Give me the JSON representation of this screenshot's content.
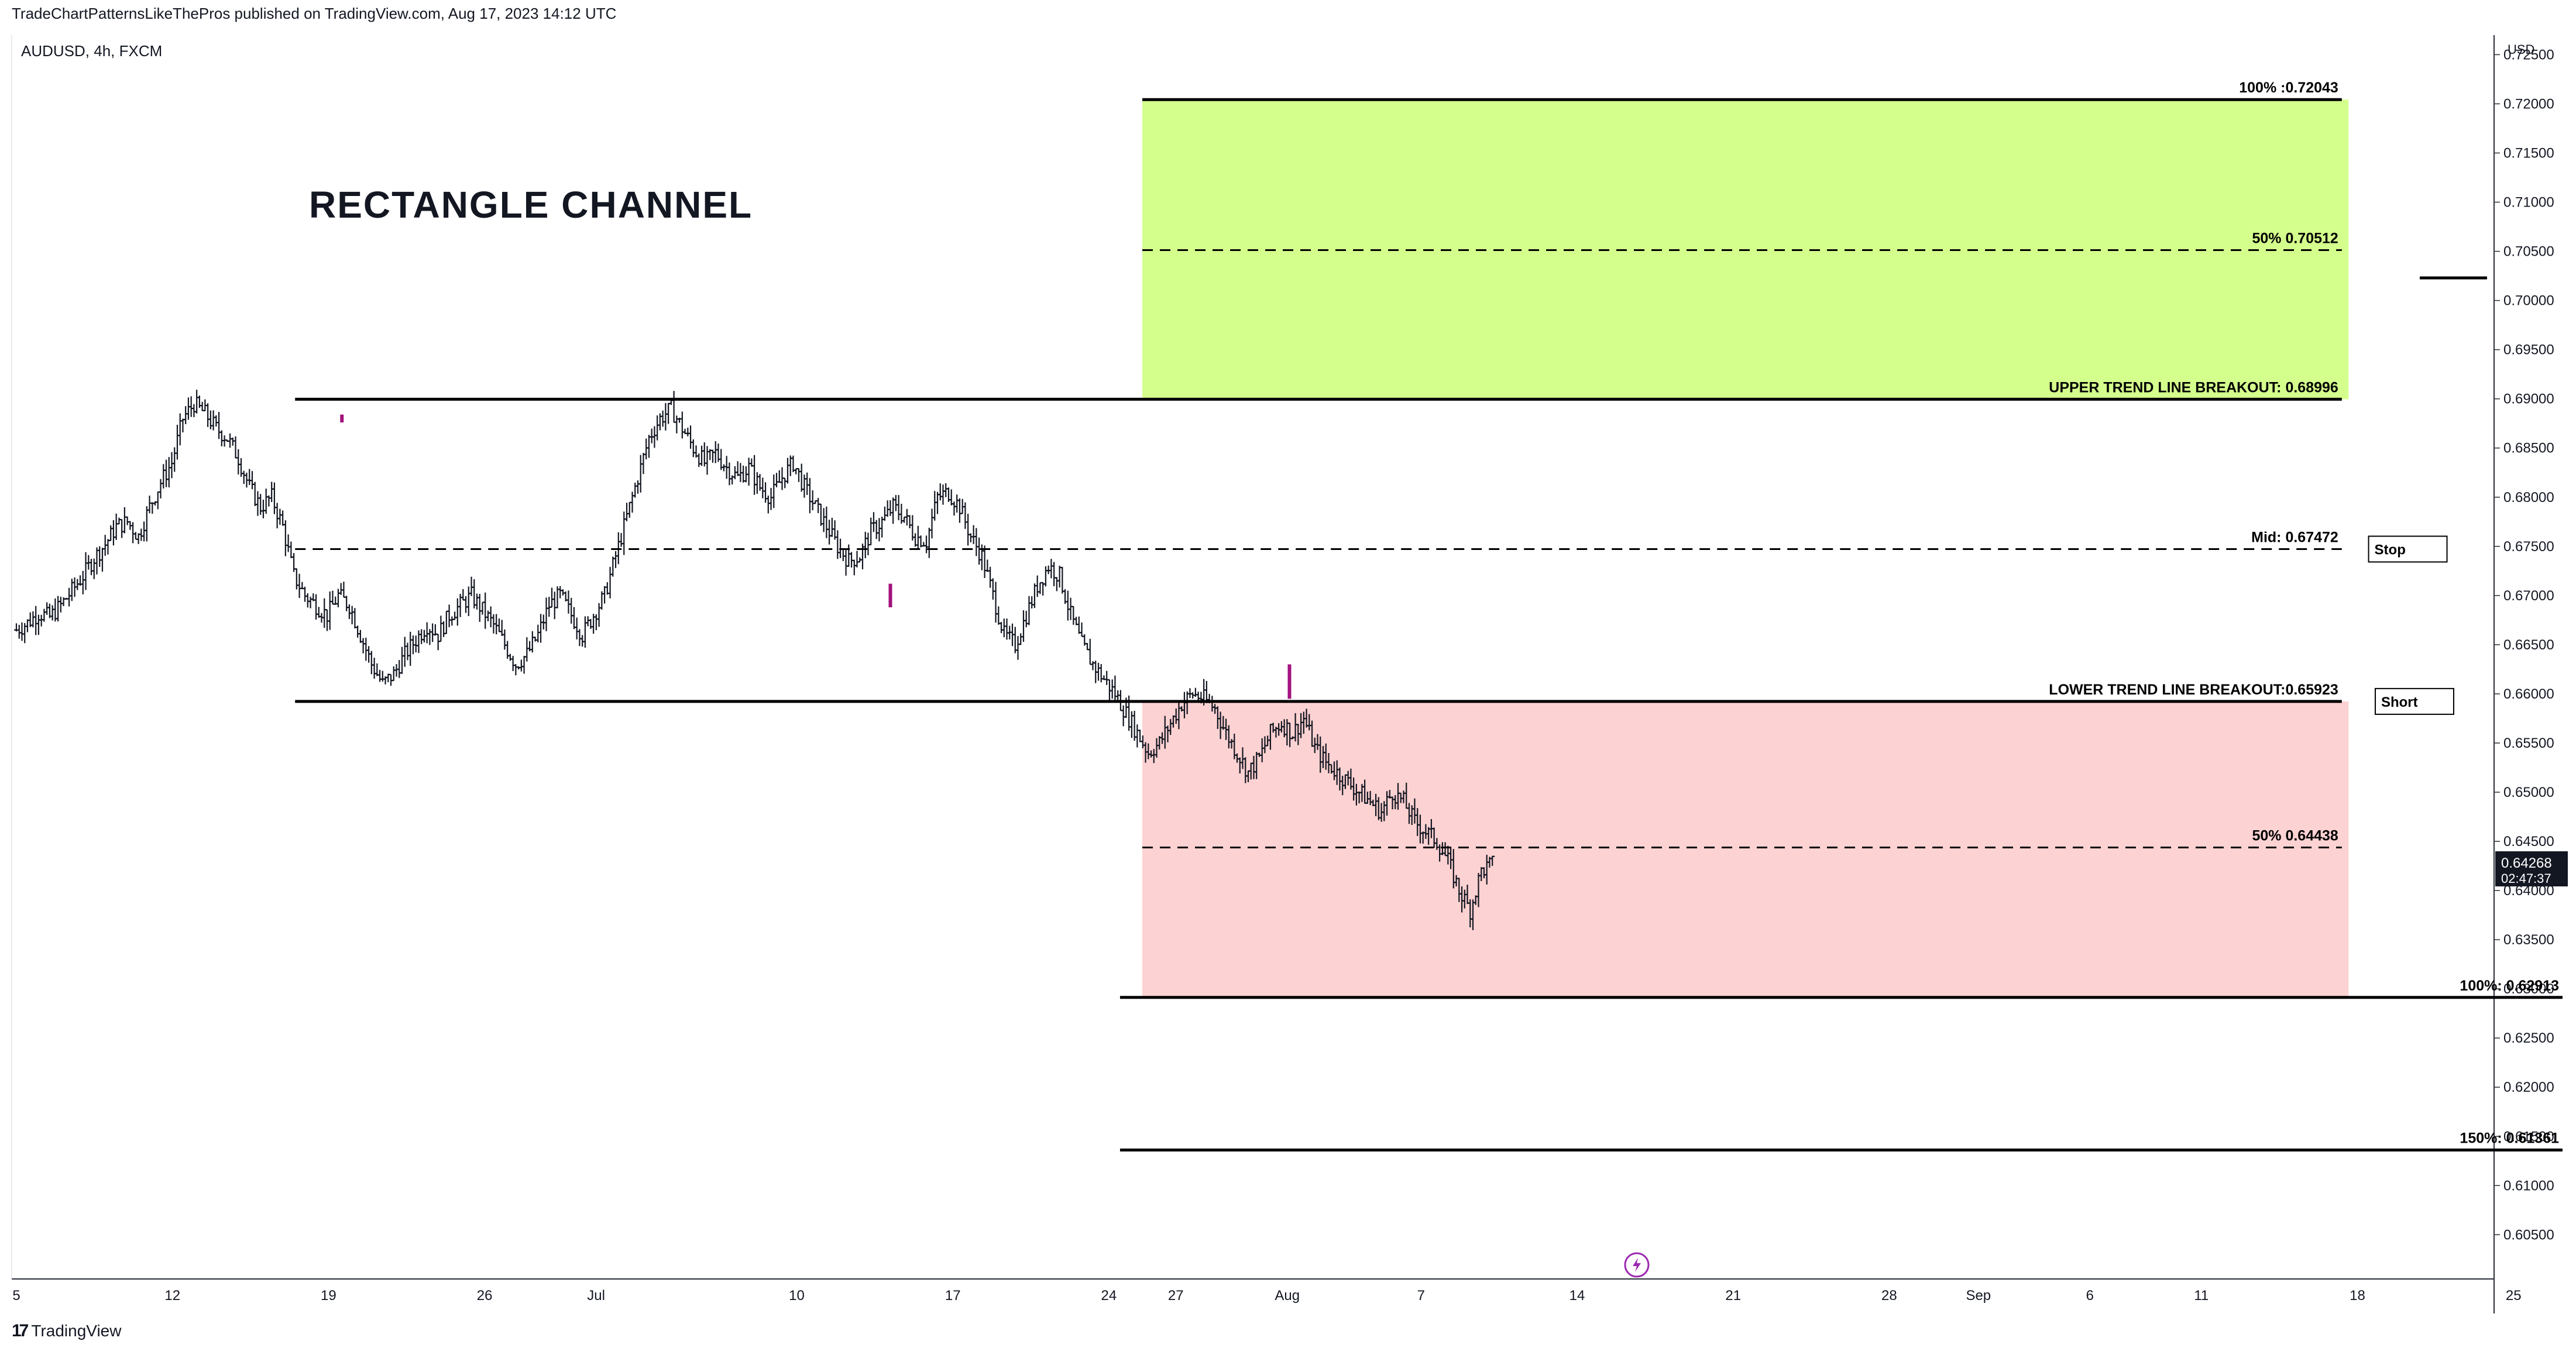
{
  "header": {
    "published_line": "TradeChartPatternsLikeThePros published on TradingView.com, Aug 17, 2023 14:12 UTC"
  },
  "footer": {
    "logo_text": "TradingView",
    "logo_mark": "17"
  },
  "chart_data": {
    "type": "candlestick",
    "symbol_label": "AUDUSD, 4h, FXCM",
    "title": "RECTANGLE CHANNEL",
    "currency": "USD",
    "ylim": [
      0.6005,
      0.7255
    ],
    "y_ticks": [
      0.725,
      0.72,
      0.715,
      0.71,
      0.705,
      0.7,
      0.695,
      0.69,
      0.685,
      0.68,
      0.675,
      0.67,
      0.665,
      0.66,
      0.655,
      0.65,
      0.645,
      0.64,
      0.635,
      0.63,
      0.625,
      0.62,
      0.615,
      0.61,
      0.605
    ],
    "y_tick_labels": [
      "0.72500",
      "0.72000",
      "0.71500",
      "0.71000",
      "0.70500",
      "0.70000",
      "0.69500",
      "0.69000",
      "0.68500",
      "0.68000",
      "0.67500",
      "0.67000",
      "0.66500",
      "0.66000",
      "0.65500",
      "0.65000",
      "0.64500",
      "0.64000",
      "0.63500",
      "0.63000",
      "0.62500",
      "0.62000",
      "0.61500",
      "0.61000",
      "0.60500"
    ],
    "x_ticks": [
      {
        "label": "5",
        "day": 0
      },
      {
        "label": "12",
        "day": 7
      },
      {
        "label": "19",
        "day": 14
      },
      {
        "label": "26",
        "day": 21
      },
      {
        "label": "Jul",
        "day": 26
      },
      {
        "label": "10",
        "day": 35
      },
      {
        "label": "17",
        "day": 42
      },
      {
        "label": "24",
        "day": 49
      },
      {
        "label": "27",
        "day": 52
      },
      {
        "label": "Aug",
        "day": 57
      },
      {
        "label": "7",
        "day": 63
      },
      {
        "label": "14",
        "day": 70
      },
      {
        "label": "21",
        "day": 77
      },
      {
        "label": "28",
        "day": 84
      },
      {
        "label": "Sep",
        "day": 88
      },
      {
        "label": "6",
        "day": 93
      },
      {
        "label": "11",
        "day": 98
      },
      {
        "label": "18",
        "day": 105
      },
      {
        "label": "25",
        "day": 112
      }
    ],
    "last_price": "0.64268",
    "countdown": "02:47:37",
    "series": [
      {
        "start_day": 0,
        "end_day": 66.2,
        "values": [
          0.6665,
          0.6672,
          0.6682,
          0.6678,
          0.669,
          0.6705,
          0.672,
          0.6738,
          0.6752,
          0.677,
          0.6775,
          0.676,
          0.679,
          0.6815,
          0.6835,
          0.688,
          0.6895,
          0.6885,
          0.687,
          0.686,
          0.684,
          0.681,
          0.679,
          0.68,
          0.677,
          0.672,
          0.67,
          0.669,
          0.668,
          0.67,
          0.669,
          0.666,
          0.663,
          0.661,
          0.662,
          0.664,
          0.6655,
          0.667,
          0.666,
          0.668,
          0.669,
          0.67,
          0.6685,
          0.667,
          0.665,
          0.663,
          0.664,
          0.666,
          0.669,
          0.67,
          0.668,
          0.666,
          0.668,
          0.67,
          0.674,
          0.678,
          0.682,
          0.686,
          0.688,
          0.689,
          0.687,
          0.685,
          0.6835,
          0.6845,
          0.683,
          0.682,
          0.683,
          0.681,
          0.68,
          0.682,
          0.6835,
          0.681,
          0.679,
          0.677,
          0.675,
          0.6735,
          0.674,
          0.6765,
          0.6775,
          0.679,
          0.678,
          0.676,
          0.6755,
          0.68,
          0.6805,
          0.679,
          0.676,
          0.674,
          0.67,
          0.666,
          0.665,
          0.668,
          0.671,
          0.673,
          0.672,
          0.668,
          0.665,
          0.663,
          0.6615,
          0.66,
          0.658,
          0.656,
          0.654,
          0.655,
          0.657,
          0.659,
          0.66,
          0.6595,
          0.6585,
          0.656,
          0.654,
          0.652,
          0.6535,
          0.656,
          0.657,
          0.656,
          0.6575,
          0.6545,
          0.653,
          0.652,
          0.651,
          0.65,
          0.649,
          0.648,
          0.65,
          0.649,
          0.647,
          0.646,
          0.645,
          0.643,
          0.64,
          0.638,
          0.642,
          0.6427
        ]
      },
      {
        "name": "highlight",
        "points": [
          {
            "day": 14.6,
            "o": 0.6884,
            "c": 0.6876
          },
          {
            "day": 39.2,
            "o": 0.6688,
            "c": 0.6712
          },
          {
            "day": 57.1,
            "o": 0.663,
            "c": 0.6595
          }
        ]
      }
    ],
    "levels": [
      {
        "value": 0.72043,
        "label": "100% :0.72043",
        "style": "solid",
        "from_day": 50.5,
        "to_day": 104.3
      },
      {
        "value": 0.70512,
        "label": "50% 0.70512",
        "style": "dashed",
        "from_day": 50.5,
        "to_day": 104.3
      },
      {
        "value": 0.68996,
        "label": "UPPER TREND LINE BREAKOUT: 0.68996",
        "style": "solid",
        "from_day": 12.5,
        "to_day": 104.3
      },
      {
        "value": 0.67472,
        "label": "Mid: 0.67472",
        "style": "dashed",
        "from_day": 12.5,
        "to_day": 104.3
      },
      {
        "value": 0.65923,
        "label": "LOWER TREND LINE BREAKOUT:0.65923",
        "style": "solid",
        "from_day": 12.5,
        "to_day": 104.3
      },
      {
        "value": 0.64438,
        "label": "50% 0.64438",
        "style": "dashed",
        "from_day": 50.5,
        "to_day": 104.3
      },
      {
        "value": 0.62913,
        "label": "100%: 0.62913",
        "style": "solid",
        "from_day": 49.5,
        "to_day": 114.2
      },
      {
        "value": 0.61361,
        "label": "150%: 0.61361",
        "style": "solid",
        "from_day": 49.5,
        "to_day": 114.2
      }
    ],
    "zones": [
      {
        "name": "target-up",
        "from_value": 0.68996,
        "to_value": 0.72043,
        "from_day": 50.5,
        "to_day": 104.6,
        "color": "#d4ff8c"
      },
      {
        "name": "target-down",
        "from_value": 0.62913,
        "to_value": 0.65923,
        "from_day": 50.5,
        "to_day": 104.6,
        "color": "#fdd2d2"
      }
    ],
    "marker_boxes": [
      {
        "label": "Stop",
        "value": 0.67472,
        "day": 105.5
      },
      {
        "label": "Short",
        "value": 0.65923,
        "day": 105.8
      }
    ],
    "extra_line": {
      "value": 0.7023
    },
    "colors": {
      "candle": "#131722",
      "highlight": "#a3127e",
      "alert": "#9c27b0"
    }
  }
}
